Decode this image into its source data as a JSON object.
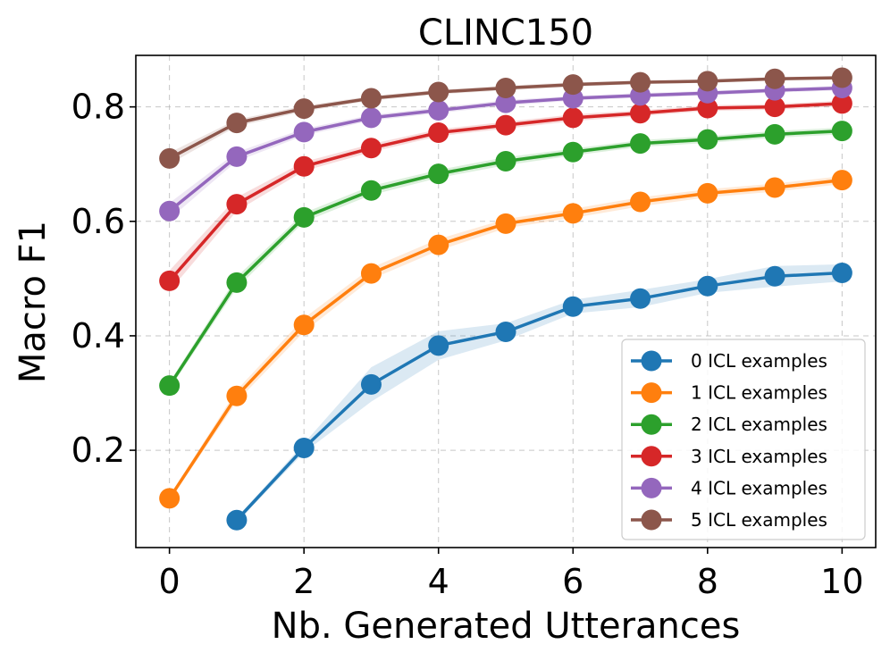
{
  "chart_data": {
    "type": "line",
    "title": "CLINC150",
    "xlabel": "Nb. Generated Utterances",
    "ylabel": "Macro F1",
    "xlim": [
      -0.5,
      10.5
    ],
    "ylim": [
      0.03,
      0.89
    ],
    "xticks": [
      0,
      2,
      4,
      6,
      8,
      10
    ],
    "xtick_labels": [
      "0",
      "2",
      "4",
      "6",
      "8",
      "10"
    ],
    "yticks": [
      0.2,
      0.4,
      0.6,
      0.8
    ],
    "ytick_labels": [
      "0.2",
      "0.4",
      "0.6",
      "0.8"
    ],
    "grid": true,
    "legend_position": "bottom-right",
    "series": [
      {
        "name": "0 ICL examples",
        "color": "#1f77b4",
        "x": [
          1,
          2,
          3,
          4,
          5,
          6,
          7,
          8,
          9,
          10
        ],
        "values": [
          0.078,
          0.204,
          0.315,
          0.383,
          0.407,
          0.451,
          0.465,
          0.487,
          0.504,
          0.51
        ],
        "band": [
          0.004,
          0.008,
          0.03,
          0.025,
          0.015,
          0.012,
          0.015,
          0.012,
          0.018,
          0.015
        ]
      },
      {
        "name": "1 ICL examples",
        "color": "#ff7f0e",
        "x": [
          0,
          1,
          2,
          3,
          4,
          5,
          6,
          7,
          8,
          9,
          10
        ],
        "values": [
          0.116,
          0.295,
          0.419,
          0.509,
          0.559,
          0.596,
          0.614,
          0.634,
          0.649,
          0.659,
          0.672
        ],
        "band": [
          0.004,
          0.01,
          0.012,
          0.01,
          0.01,
          0.008,
          0.008,
          0.008,
          0.007,
          0.007,
          0.007
        ]
      },
      {
        "name": "2 ICL examples",
        "color": "#2ca02c",
        "x": [
          0,
          1,
          2,
          3,
          4,
          5,
          6,
          7,
          8,
          9,
          10
        ],
        "values": [
          0.313,
          0.493,
          0.607,
          0.654,
          0.683,
          0.705,
          0.721,
          0.736,
          0.743,
          0.752,
          0.758
        ],
        "band": [
          0.006,
          0.01,
          0.008,
          0.008,
          0.007,
          0.007,
          0.006,
          0.006,
          0.006,
          0.006,
          0.006
        ]
      },
      {
        "name": "3 ICL examples",
        "color": "#d62728",
        "x": [
          0,
          1,
          2,
          3,
          4,
          5,
          6,
          7,
          8,
          9,
          10
        ],
        "values": [
          0.496,
          0.63,
          0.696,
          0.728,
          0.755,
          0.768,
          0.781,
          0.789,
          0.798,
          0.8,
          0.806
        ],
        "band": [
          0.018,
          0.012,
          0.008,
          0.007,
          0.006,
          0.006,
          0.006,
          0.005,
          0.005,
          0.005,
          0.005
        ]
      },
      {
        "name": "4 ICL examples",
        "color": "#9467bd",
        "x": [
          0,
          1,
          2,
          3,
          4,
          5,
          6,
          7,
          8,
          9,
          10
        ],
        "values": [
          0.618,
          0.713,
          0.756,
          0.781,
          0.794,
          0.807,
          0.815,
          0.82,
          0.824,
          0.829,
          0.833
        ],
        "band": [
          0.014,
          0.008,
          0.006,
          0.005,
          0.005,
          0.005,
          0.004,
          0.004,
          0.004,
          0.004,
          0.004
        ]
      },
      {
        "name": "5 ICL examples",
        "color": "#8c564b",
        "x": [
          0,
          1,
          2,
          3,
          4,
          5,
          6,
          7,
          8,
          9,
          10
        ],
        "values": [
          0.71,
          0.772,
          0.797,
          0.815,
          0.826,
          0.833,
          0.839,
          0.843,
          0.845,
          0.849,
          0.851
        ],
        "band": [
          0.01,
          0.006,
          0.005,
          0.004,
          0.004,
          0.004,
          0.004,
          0.003,
          0.003,
          0.003,
          0.003
        ]
      }
    ]
  }
}
